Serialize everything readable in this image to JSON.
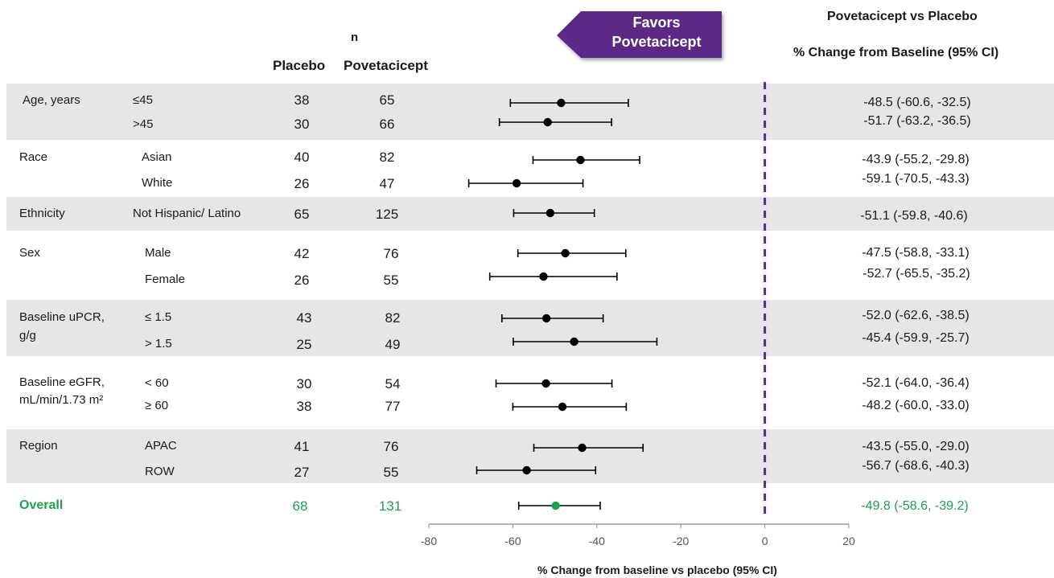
{
  "header": {
    "n_label": "n",
    "placebo": "Placebo",
    "povetacicept": "Povetacicept",
    "comparison_title": "Povetacicept vs Placebo",
    "comparison_subtitle": "% Change from Baseline (95% CI)",
    "favors_line1": "Favors",
    "favors_line2": "Povetacicept"
  },
  "groups": [
    {
      "label": "Age, years",
      "label_line2": "",
      "shaded": true
    },
    {
      "label": "Race",
      "label_line2": "",
      "shaded": false
    },
    {
      "label": "Ethnicity",
      "label_line2": "",
      "shaded": true
    },
    {
      "label": "Sex",
      "label_line2": "",
      "shaded": false
    },
    {
      "label": "Baseline uPCR,",
      "label_line2": "g/g",
      "shaded": true
    },
    {
      "label": "Baseline eGFR,",
      "label_line2": "mL/min/1.73 m²",
      "shaded": false
    },
    {
      "label": "Region",
      "label_line2": "",
      "shaded": true
    }
  ],
  "rows": [
    {
      "sub": "≤45",
      "placebo_n": "38",
      "pov_n": "65",
      "ci_text": "-48.5 (-60.6, -32.5)"
    },
    {
      "sub": ">45",
      "placebo_n": "30",
      "pov_n": "66",
      "ci_text": "-51.7 (-63.2, -36.5)"
    },
    {
      "sub": "Asian",
      "placebo_n": "40",
      "pov_n": "82",
      "ci_text": "-43.9 (-55.2, -29.8)"
    },
    {
      "sub": "White",
      "placebo_n": "26",
      "pov_n": "47",
      "ci_text": "-59.1 (-70.5, -43.3)"
    },
    {
      "sub": "Not Hispanic/ Latino",
      "placebo_n": "65",
      "pov_n": "125",
      "ci_text": "-51.1 (-59.8, -40.6)"
    },
    {
      "sub": "Male",
      "placebo_n": "42",
      "pov_n": "76",
      "ci_text": "-47.5 (-58.8, -33.1)"
    },
    {
      "sub": "Female",
      "placebo_n": "26",
      "pov_n": "55",
      "ci_text": "-52.7 (-65.5, -35.2)"
    },
    {
      "sub": "≤ 1.5",
      "placebo_n": "43",
      "pov_n": "82",
      "ci_text": "-52.0 (-62.6, -38.5)"
    },
    {
      "sub": "> 1.5",
      "placebo_n": "25",
      "pov_n": "49",
      "ci_text": "-45.4 (-59.9, -25.7)"
    },
    {
      "sub": "< 60",
      "placebo_n": "30",
      "pov_n": "54",
      "ci_text": "-52.1 (-64.0, -36.4)"
    },
    {
      "sub": "≥ 60",
      "placebo_n": "38",
      "pov_n": "77",
      "ci_text": "-48.2 (-60.0, -33.0)"
    },
    {
      "sub": "APAC",
      "placebo_n": "41",
      "pov_n": "76",
      "ci_text": "-43.5 (-55.0, -29.0)"
    },
    {
      "sub": "ROW",
      "placebo_n": "27",
      "pov_n": "55",
      "ci_text": "-56.7 (-68.6, -40.3)"
    }
  ],
  "overall": {
    "label": "Overall",
    "placebo_n": "68",
    "pov_n": "131",
    "ci_text": "-49.8 (-58.6, -39.2)"
  },
  "colors": {
    "accent_purple": "#5b2a86",
    "overall_green": "#1aa34a",
    "band_gray": "#e6e6e6",
    "point_black": "#000000"
  },
  "chart_data": {
    "type": "forest",
    "xlabel": "% Change from baseline vs placebo (95% CI)",
    "xlim": [
      -80,
      20
    ],
    "xticks": [
      -80,
      -60,
      -40,
      -20,
      0,
      20
    ],
    "reference_line": 0,
    "series": [
      {
        "name": "",
        "points": [
          {
            "category": "Age, years ≤45",
            "estimate": -48.5,
            "lower": -60.6,
            "upper": -32.5
          },
          {
            "category": "Age, years >45",
            "estimate": -51.7,
            "lower": -63.2,
            "upper": -36.5
          },
          {
            "category": "Race Asian",
            "estimate": -43.9,
            "lower": -55.2,
            "upper": -29.8
          },
          {
            "category": "Race White",
            "estimate": -59.1,
            "lower": -70.5,
            "upper": -43.3
          },
          {
            "category": "Ethnicity Not Hispanic/ Latino",
            "estimate": -51.1,
            "lower": -59.8,
            "upper": -40.6
          },
          {
            "category": "Sex Male",
            "estimate": -47.5,
            "lower": -58.8,
            "upper": -33.1
          },
          {
            "category": "Sex Female",
            "estimate": -52.7,
            "lower": -65.5,
            "upper": -35.2
          },
          {
            "category": "Baseline uPCR ≤ 1.5",
            "estimate": -52.0,
            "lower": -62.6,
            "upper": -38.5
          },
          {
            "category": "Baseline uPCR > 1.5",
            "estimate": -45.4,
            "lower": -59.9,
            "upper": -25.7
          },
          {
            "category": "Baseline eGFR < 60",
            "estimate": -52.1,
            "lower": -64.0,
            "upper": -36.4
          },
          {
            "category": "Baseline eGFR ≥ 60",
            "estimate": -48.2,
            "lower": -60.0,
            "upper": -33.0
          },
          {
            "category": "Region APAC",
            "estimate": -43.5,
            "lower": -55.0,
            "upper": -29.0
          },
          {
            "category": "Region ROW",
            "estimate": -56.7,
            "lower": -68.6,
            "upper": -40.3
          },
          {
            "category": "Overall",
            "estimate": -49.8,
            "lower": -58.6,
            "upper": -39.2
          }
        ]
      }
    ]
  }
}
